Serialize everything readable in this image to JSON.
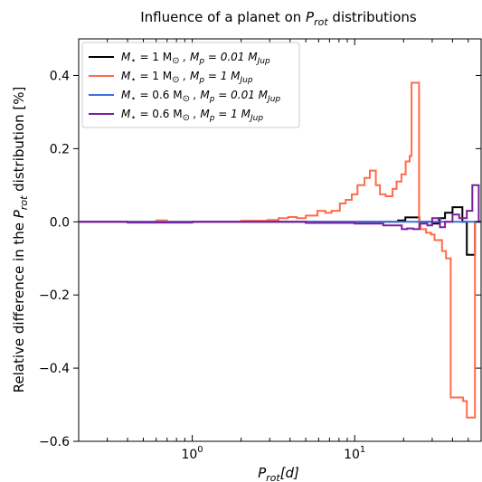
{
  "chart_data": {
    "type": "line",
    "title_prefix": "Influence of a planet on ",
    "title_var": "P",
    "title_sub": "rot",
    "title_suffix": " distributions",
    "xlabel_var": "P",
    "xlabel_sub": "rot",
    "xlabel_unit": "[d]",
    "ylabel_prefix": "Relative difference in the ",
    "ylabel_var": "P",
    "ylabel_sub": "rot",
    "ylabel_suffix": " distribution [%]",
    "xscale": "log",
    "xlim": [
      0.2,
      60
    ],
    "ylim": [
      -0.6,
      0.5
    ],
    "x_ticks": [
      {
        "value": 1,
        "base": "10",
        "exp": "0"
      },
      {
        "value": 10,
        "base": "10",
        "exp": "1"
      }
    ],
    "y_ticks": [
      {
        "value": -0.6,
        "label": "−0.6"
      },
      {
        "value": -0.4,
        "label": "−0.4"
      },
      {
        "value": -0.2,
        "label": "−0.2"
      },
      {
        "value": 0.0,
        "label": "0.0"
      },
      {
        "value": 0.2,
        "label": "0.2"
      },
      {
        "value": 0.4,
        "label": "0.4"
      }
    ],
    "legend_position": "top-left",
    "grid": false,
    "series": [
      {
        "name": "M⋆ = 1 M⊙ , Mp = 0.01 MJup",
        "legend": {
          "ms": "1",
          "mp": "0.01"
        },
        "color": "#000000",
        "points": [
          [
            0.2,
            0.0
          ],
          [
            1.0,
            0.0
          ],
          [
            5.0,
            0.0
          ],
          [
            10.0,
            0.0
          ],
          [
            18.0,
            0.0
          ],
          [
            18.5,
            0.004
          ],
          [
            20.5,
            0.012
          ],
          [
            25.0,
            0.0
          ],
          [
            30.0,
            -0.005
          ],
          [
            33.0,
            0.01
          ],
          [
            36.0,
            0.025
          ],
          [
            40.0,
            0.04
          ],
          [
            46.0,
            0.0
          ],
          [
            49.0,
            -0.09
          ],
          [
            55.0,
            0.0
          ],
          [
            60.0,
            0.0
          ]
        ]
      },
      {
        "name": "M⋆ = 1 M⊙ , Mp = 1 MJup",
        "legend": {
          "ms": "1",
          "mp": "1"
        },
        "color": "#ff6b4a",
        "points": [
          [
            0.2,
            0.0
          ],
          [
            0.6,
            0.004
          ],
          [
            0.7,
            0.0
          ],
          [
            2.0,
            0.003
          ],
          [
            2.9,
            0.005
          ],
          [
            3.4,
            0.01
          ],
          [
            3.9,
            0.013
          ],
          [
            4.4,
            0.01
          ],
          [
            5.0,
            0.017
          ],
          [
            5.9,
            0.03
          ],
          [
            6.6,
            0.025
          ],
          [
            7.2,
            0.03
          ],
          [
            8.1,
            0.05
          ],
          [
            8.8,
            0.06
          ],
          [
            9.6,
            0.075
          ],
          [
            10.4,
            0.1
          ],
          [
            11.5,
            0.12
          ],
          [
            12.4,
            0.14
          ],
          [
            13.5,
            0.1
          ],
          [
            14.3,
            0.075
          ],
          [
            15.5,
            0.07
          ],
          [
            16.4,
            0.07
          ],
          [
            17.1,
            0.09
          ],
          [
            18.1,
            0.11
          ],
          [
            19.4,
            0.13
          ],
          [
            20.6,
            0.165
          ],
          [
            21.8,
            0.18
          ],
          [
            22.4,
            0.38
          ],
          [
            24.9,
            0.0
          ],
          [
            25.5,
            -0.02
          ],
          [
            27.5,
            -0.03
          ],
          [
            29.5,
            -0.035
          ],
          [
            31.0,
            -0.05
          ],
          [
            34.5,
            -0.08
          ],
          [
            36.5,
            -0.1
          ],
          [
            39.0,
            -0.48
          ],
          [
            46.5,
            -0.49
          ],
          [
            49.0,
            -0.535
          ],
          [
            55.0,
            0.0
          ],
          [
            60.0,
            0.0
          ]
        ]
      },
      {
        "name": "M⋆ = 0.6 M⊙ , Mp = 0.01 MJup",
        "legend": {
          "ms": "0.6",
          "mp": "0.01"
        },
        "color": "#3f6fd8",
        "points": [
          [
            0.2,
            0.0
          ],
          [
            1.0,
            0.0
          ],
          [
            10.0,
            0.0
          ],
          [
            30.0,
            0.0
          ],
          [
            60.0,
            0.0
          ]
        ]
      },
      {
        "name": "M⋆ = 0.6 M⊙ , Mp = 1 MJup",
        "legend": {
          "ms": "0.6",
          "mp": "1"
        },
        "color": "#7a1f9e",
        "points": [
          [
            0.2,
            0.0
          ],
          [
            0.4,
            -0.002
          ],
          [
            1.0,
            0.0
          ],
          [
            5.0,
            -0.003
          ],
          [
            10.0,
            -0.005
          ],
          [
            15.0,
            -0.01
          ],
          [
            18.0,
            -0.01
          ],
          [
            19.5,
            -0.02
          ],
          [
            21.0,
            -0.018
          ],
          [
            23.0,
            -0.02
          ],
          [
            25.0,
            -0.005
          ],
          [
            28.0,
            -0.01
          ],
          [
            30.0,
            0.01
          ],
          [
            33.5,
            -0.015
          ],
          [
            36.0,
            0.0
          ],
          [
            40.0,
            0.02
          ],
          [
            44.0,
            0.01
          ],
          [
            49.0,
            0.03
          ],
          [
            53.0,
            0.1
          ],
          [
            58.0,
            0.0
          ],
          [
            60.0,
            0.0
          ]
        ]
      }
    ]
  }
}
